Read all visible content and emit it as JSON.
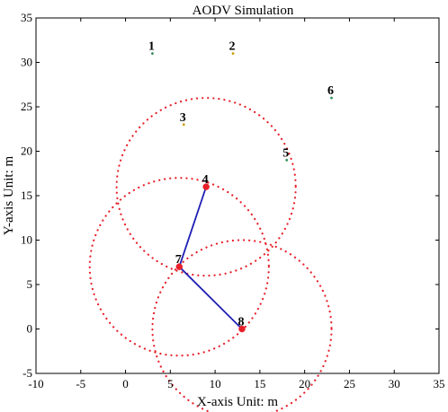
{
  "chart_data": {
    "type": "scatter",
    "title": "AODV Simulation",
    "xlabel": "X-axis Unit: m",
    "ylabel": "Y-axis Unit: m",
    "xlim": [
      -10,
      35
    ],
    "ylim": [
      -5,
      35
    ],
    "xticks": [
      -10,
      -5,
      0,
      5,
      10,
      15,
      20,
      25,
      30,
      35
    ],
    "yticks": [
      -5,
      0,
      5,
      10,
      15,
      20,
      25,
      30,
      35
    ],
    "grid": false,
    "nodes": [
      {
        "label": "1",
        "x": 3,
        "y": 31,
        "color": "#2e8b57",
        "active": false
      },
      {
        "label": "2",
        "x": 12,
        "y": 31,
        "color": "#cc9900",
        "active": false
      },
      {
        "label": "3",
        "x": 6.5,
        "y": 23,
        "color": "#cc9900",
        "active": false
      },
      {
        "label": "4",
        "x": 9,
        "y": 16,
        "color": "#e8202a",
        "active": true
      },
      {
        "label": "5",
        "x": 18,
        "y": 19,
        "color": "#2e8b57",
        "active": false
      },
      {
        "label": "6",
        "x": 23,
        "y": 26,
        "color": "#2e8b57",
        "active": false
      },
      {
        "label": "7",
        "x": 6,
        "y": 7,
        "color": "#e8202a",
        "active": true
      },
      {
        "label": "8",
        "x": 13,
        "y": 0,
        "color": "#e8202a",
        "active": true
      }
    ],
    "route": [
      "4",
      "7",
      "8"
    ],
    "range_radius": 10,
    "range_circles": [
      {
        "cx": 9,
        "cy": 16
      },
      {
        "cx": 6,
        "cy": 7
      },
      {
        "cx": 13,
        "cy": 0
      }
    ],
    "colors": {
      "route": "#1f1fb4",
      "range_circle": "#e8202a",
      "axes": "#000000"
    }
  }
}
